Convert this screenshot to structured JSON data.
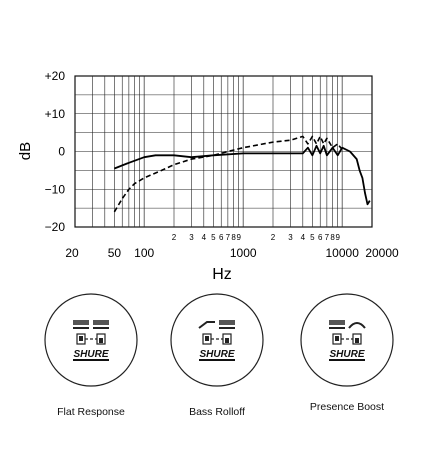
{
  "chart_data": {
    "type": "line",
    "xlabel": "Hz",
    "ylabel": "dB",
    "x_scale": "log",
    "xlim": [
      20,
      20000
    ],
    "ylim": [
      -20,
      20
    ],
    "y_ticks": [
      "+20",
      "+10",
      "0",
      "−10",
      "−20"
    ],
    "x_major_ticks": [
      "20",
      "50",
      "100",
      "1000",
      "10000",
      "20000"
    ],
    "x_minor_ticks": [
      {
        "label": "2",
        "value": 200
      },
      {
        "label": "3",
        "value": 300
      },
      {
        "label": "4",
        "value": 400
      },
      {
        "label": "5",
        "value": 500
      },
      {
        "label": "6",
        "value": 600
      },
      {
        "label": "7",
        "value": 700
      },
      {
        "label": "8",
        "value": 800
      },
      {
        "label": "9",
        "value": 900
      },
      {
        "label": "2",
        "value": 2000
      },
      {
        "label": "3",
        "value": 3000
      },
      {
        "label": "4",
        "value": 4000
      },
      {
        "label": "5",
        "value": 5000
      },
      {
        "label": "6",
        "value": 6000
      },
      {
        "label": "7",
        "value": 7000
      },
      {
        "label": "8",
        "value": 8000
      },
      {
        "label": "9",
        "value": 9000
      }
    ],
    "grid": true,
    "series": [
      {
        "style": "solid",
        "x": [
          50,
          70,
          100,
          130,
          200,
          300,
          500,
          1000,
          2000,
          3000,
          4000,
          4500,
          5000,
          5500,
          6000,
          6500,
          7000,
          8000,
          9000,
          10000,
          12000,
          14000,
          15000,
          16000,
          17000,
          18000,
          19000
        ],
        "y": [
          -4.5,
          -3,
          -1.5,
          -1,
          -1,
          -1.5,
          -1,
          -0.5,
          -0.5,
          -0.5,
          -0.5,
          1,
          -1,
          1.5,
          -0.5,
          1.5,
          -1,
          1,
          -1,
          1,
          0,
          -2,
          -5,
          -7,
          -11,
          -14,
          -13
        ]
      },
      {
        "style": "dashed",
        "x": [
          50,
          60,
          70,
          80,
          100,
          150,
          200,
          300,
          500,
          700,
          1000,
          2000,
          3000,
          4000,
          4500,
          5000,
          5500,
          6000,
          6500,
          7000,
          8000,
          9000,
          10000
        ],
        "y": [
          -16,
          -12.5,
          -10,
          -8.5,
          -7,
          -5,
          -3.5,
          -2,
          -1,
          0,
          1,
          2.5,
          3,
          4,
          2,
          4,
          2,
          4,
          2,
          3.5,
          1,
          2,
          0.5
        ]
      }
    ]
  },
  "badges": [
    {
      "label": "Flat Response",
      "logo": "SHURE",
      "switch": "flat"
    },
    {
      "label": "Bass Rolloff",
      "logo": "SHURE",
      "switch": "rolloff"
    },
    {
      "label": "Presence Boost",
      "logo": "SHURE",
      "switch": "boost"
    }
  ]
}
